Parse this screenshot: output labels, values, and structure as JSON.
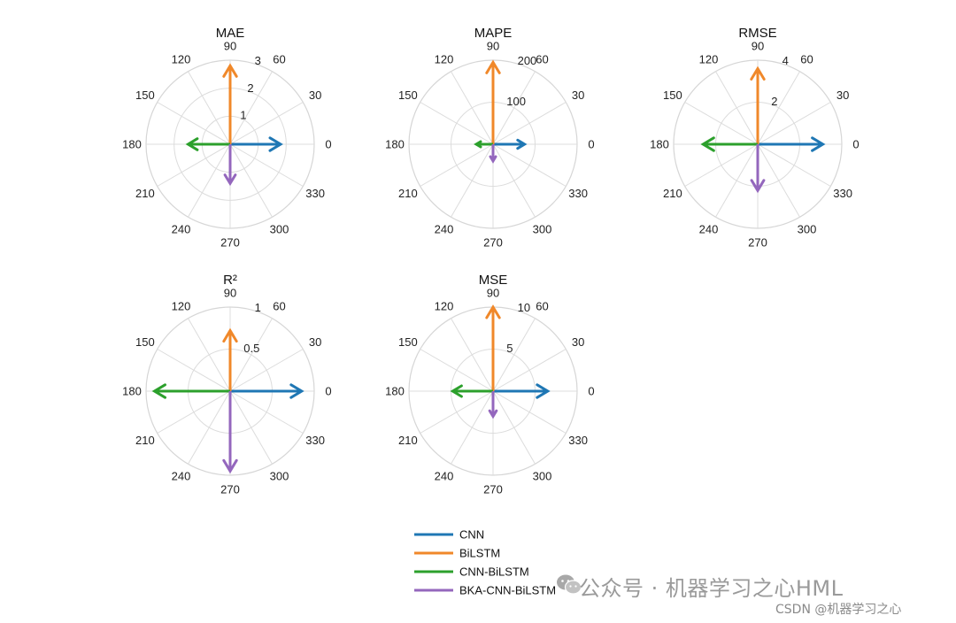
{
  "chart_data": {
    "type": "polar",
    "angle_ticks": [
      "0",
      "30",
      "60",
      "90",
      "120",
      "150",
      "180",
      "210",
      "240",
      "270",
      "300",
      "330"
    ],
    "legend": {
      "placement": "bottom-center",
      "entries": [
        {
          "name": "CNN",
          "color": "#1f77b4"
        },
        {
          "name": "BiLSTM",
          "color": "#f0882a"
        },
        {
          "name": "CNN-BiLSTM",
          "color": "#2ca02c"
        },
        {
          "name": "BKA-CNN-BiLSTM",
          "color": "#9467bd"
        }
      ]
    },
    "subplots": [
      {
        "title": "MAE",
        "rmax": 3,
        "radial_ticks": [
          {
            "value": 1,
            "label": "1"
          },
          {
            "value": 2,
            "label": "2"
          },
          {
            "value": 3,
            "label": "3"
          }
        ],
        "vectors": [
          {
            "series": "CNN",
            "angle": 0,
            "magnitude": 1.8
          },
          {
            "series": "BiLSTM",
            "angle": 90,
            "magnitude": 2.8
          },
          {
            "series": "CNN-BiLSTM",
            "angle": 180,
            "magnitude": 1.5
          },
          {
            "series": "BKA-CNN-BiLSTM",
            "angle": 270,
            "magnitude": 1.4
          }
        ]
      },
      {
        "title": "MAPE",
        "rmax": 200,
        "radial_ticks": [
          {
            "value": 100,
            "label": "100"
          },
          {
            "value": 200,
            "label": "200"
          }
        ],
        "vectors": [
          {
            "series": "CNN",
            "angle": 0,
            "magnitude": 75
          },
          {
            "series": "BiLSTM",
            "angle": 90,
            "magnitude": 195
          },
          {
            "series": "CNN-BiLSTM",
            "angle": 180,
            "magnitude": 40
          },
          {
            "series": "BKA-CNN-BiLSTM",
            "angle": 270,
            "magnitude": 40
          }
        ]
      },
      {
        "title": "RMSE",
        "rmax": 4,
        "radial_ticks": [
          {
            "value": 2,
            "label": "2"
          },
          {
            "value": 4,
            "label": "4"
          }
        ],
        "vectors": [
          {
            "series": "CNN",
            "angle": 0,
            "magnitude": 3.1
          },
          {
            "series": "BiLSTM",
            "angle": 90,
            "magnitude": 3.6
          },
          {
            "series": "CNN-BiLSTM",
            "angle": 180,
            "magnitude": 2.6
          },
          {
            "series": "BKA-CNN-BiLSTM",
            "angle": 270,
            "magnitude": 2.2
          }
        ]
      },
      {
        "title": "R²",
        "rmax": 1,
        "radial_ticks": [
          {
            "value": 0.5,
            "label": "0.5"
          },
          {
            "value": 1,
            "label": "1"
          }
        ],
        "vectors": [
          {
            "series": "CNN",
            "angle": 0,
            "magnitude": 0.85
          },
          {
            "series": "BiLSTM",
            "angle": 90,
            "magnitude": 0.72
          },
          {
            "series": "CNN-BiLSTM",
            "angle": 180,
            "magnitude": 0.9
          },
          {
            "series": "BKA-CNN-BiLSTM",
            "angle": 270,
            "magnitude": 0.95
          }
        ]
      },
      {
        "title": "MSE",
        "rmax": 10,
        "radial_ticks": [
          {
            "value": 5,
            "label": "5"
          },
          {
            "value": 10,
            "label": "10"
          }
        ],
        "vectors": [
          {
            "series": "CNN",
            "angle": 0,
            "magnitude": 6.5
          },
          {
            "series": "BiLSTM",
            "angle": 90,
            "magnitude": 10
          },
          {
            "series": "CNN-BiLSTM",
            "angle": 180,
            "magnitude": 4.8
          },
          {
            "series": "BKA-CNN-BiLSTM",
            "angle": 270,
            "magnitude": 3.0
          }
        ]
      }
    ]
  },
  "watermark": {
    "main_text": "公众号 · 机器学习之心HML",
    "credit_text": "CSDN @机器学习之心",
    "icon": "wechat-icon"
  }
}
